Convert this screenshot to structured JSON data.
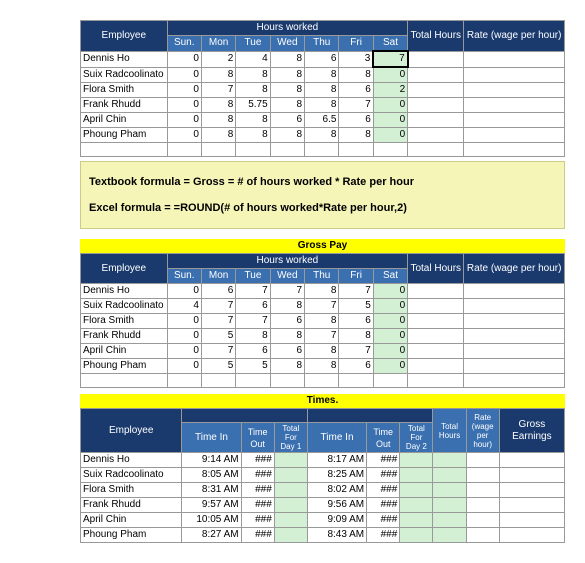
{
  "labels": {
    "employee": "Employee",
    "hoursWorked": "Hours worked",
    "totalHours": "Total Hours",
    "rate": "Rate (wage per hour)",
    "grossPay": "Gross Pay",
    "times": "Times.",
    "timeIn": "Time In",
    "timeOut": "Time Out",
    "totalDay1": "Total For Day 1",
    "totalDay2": "Total For Day 2",
    "totalHoursShort": "Total Hours",
    "rateShort": "Rate (wage per hour)",
    "grossEarnings": "Gross Earnings",
    "hash": "###"
  },
  "days": [
    "Sun.",
    "Mon",
    "Tue",
    "Wed",
    "Thu",
    "Fri",
    "Sat"
  ],
  "formula": {
    "line1": "Textbook formula = Gross = # of hours worked * Rate per hour",
    "line2": "Excel formula = =ROUND(# of hours worked*Rate per hour,2)"
  },
  "table1": {
    "rows": [
      {
        "name": "Dennis Ho",
        "vals": [
          "0",
          "2",
          "4",
          "8",
          "6",
          "3",
          "7"
        ],
        "selected": true
      },
      {
        "name": "Suix Radcoolinato",
        "vals": [
          "0",
          "8",
          "8",
          "8",
          "8",
          "8",
          "0"
        ]
      },
      {
        "name": "Flora Smith",
        "vals": [
          "0",
          "7",
          "8",
          "8",
          "8",
          "6",
          "2"
        ]
      },
      {
        "name": "Frank Rhudd",
        "vals": [
          "0",
          "8",
          "5.75",
          "8",
          "8",
          "7",
          "0"
        ]
      },
      {
        "name": "April Chin",
        "vals": [
          "0",
          "8",
          "8",
          "6",
          "6.5",
          "6",
          "0"
        ]
      },
      {
        "name": "Phoung Pham",
        "vals": [
          "0",
          "8",
          "8",
          "8",
          "8",
          "8",
          "0"
        ]
      }
    ]
  },
  "table2": {
    "rows": [
      {
        "name": "Dennis Ho",
        "vals": [
          "0",
          "6",
          "7",
          "7",
          "8",
          "7",
          "0"
        ]
      },
      {
        "name": "Suix Radcoolinato",
        "vals": [
          "4",
          "7",
          "6",
          "8",
          "7",
          "5",
          "0"
        ]
      },
      {
        "name": "Flora Smith",
        "vals": [
          "0",
          "7",
          "7",
          "6",
          "8",
          "6",
          "0"
        ]
      },
      {
        "name": "Frank Rhudd",
        "vals": [
          "0",
          "5",
          "8",
          "8",
          "7",
          "8",
          "0"
        ]
      },
      {
        "name": "April Chin",
        "vals": [
          "0",
          "7",
          "6",
          "6",
          "8",
          "7",
          "0"
        ]
      },
      {
        "name": "Phoung Pham",
        "vals": [
          "0",
          "5",
          "5",
          "8",
          "8",
          "6",
          "0"
        ]
      }
    ]
  },
  "table3": {
    "rows": [
      {
        "name": "Dennis Ho",
        "t1": "9:14 AM",
        "t2": "8:17 AM"
      },
      {
        "name": "Suix Radcoolinato",
        "t1": "8:05 AM",
        "t2": "8:25 AM"
      },
      {
        "name": "Flora Smith",
        "t1": "8:31 AM",
        "t2": "8:02 AM"
      },
      {
        "name": "Frank Rhudd",
        "t1": "9:57 AM",
        "t2": "9:56 AM"
      },
      {
        "name": "April Chin",
        "t1": "10:05 AM",
        "t2": "9:09 AM"
      },
      {
        "name": "Phoung Pham",
        "t1": "8:27 AM",
        "t2": "8:43 AM"
      }
    ]
  }
}
